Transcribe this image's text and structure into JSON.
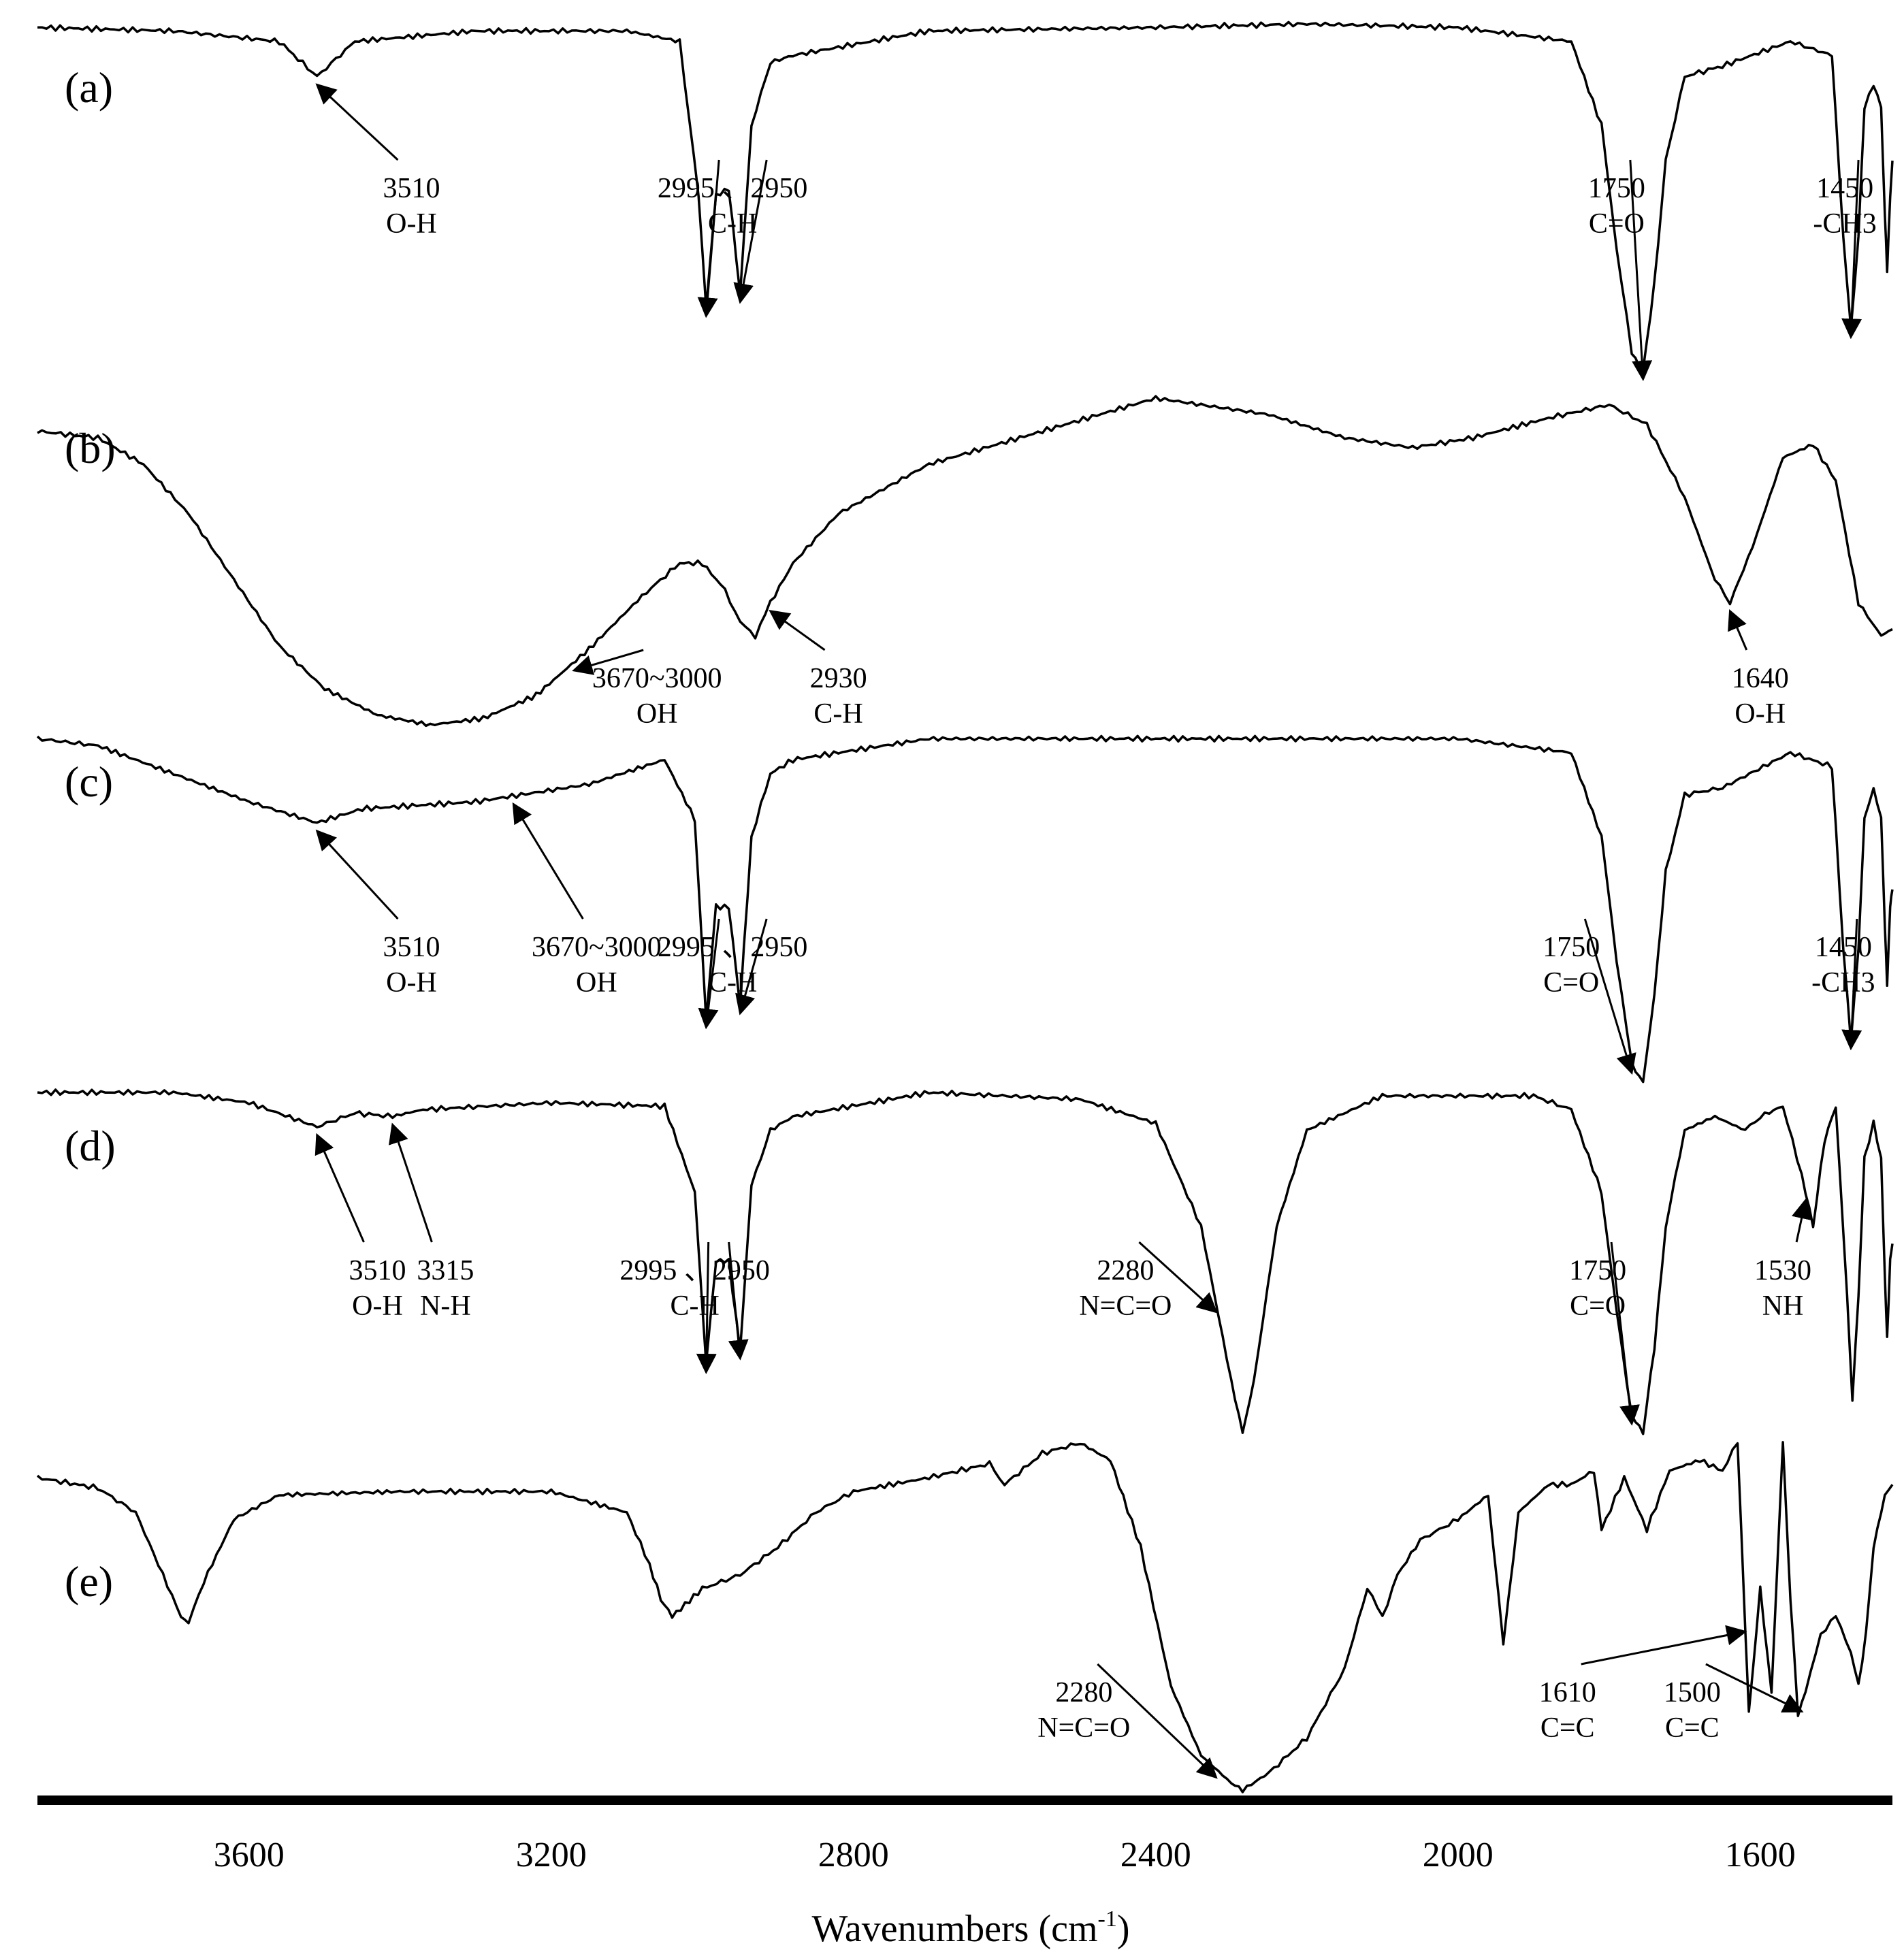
{
  "chart_data": {
    "type": "line",
    "xlabel": "Wavenumbers (cm-1)",
    "xlabel_base": "Wavenumbers (cm",
    "xlabel_sup": "-1",
    "xlabel_close": ")",
    "x_direction": "decreasing",
    "xlim": [
      3880,
      1425
    ],
    "xticks": [
      3600,
      3200,
      2800,
      2400,
      2000,
      1600
    ],
    "series": [
      {
        "name": "(a)",
        "points": [
          [
            3880,
            0.02
          ],
          [
            3700,
            0.03
          ],
          [
            3560,
            0.06
          ],
          [
            3510,
            0.16
          ],
          [
            3460,
            0.06
          ],
          [
            3300,
            0.03
          ],
          [
            3100,
            0.03
          ],
          [
            3030,
            0.06
          ],
          [
            3005,
            0.5
          ],
          [
            2995,
            0.82
          ],
          [
            2982,
            0.5
          ],
          [
            2965,
            0.48
          ],
          [
            2950,
            0.78
          ],
          [
            2935,
            0.3
          ],
          [
            2910,
            0.12
          ],
          [
            2880,
            0.1
          ],
          [
            2700,
            0.03
          ],
          [
            2400,
            0.02
          ],
          [
            2200,
            0.01
          ],
          [
            2000,
            0.02
          ],
          [
            1850,
            0.06
          ],
          [
            1810,
            0.3
          ],
          [
            1790,
            0.65
          ],
          [
            1770,
            0.95
          ],
          [
            1755,
            1.0
          ],
          [
            1740,
            0.75
          ],
          [
            1725,
            0.4
          ],
          [
            1700,
            0.16
          ],
          [
            1650,
            0.13
          ],
          [
            1560,
            0.06
          ],
          [
            1505,
            0.1
          ],
          [
            1490,
            0.62
          ],
          [
            1480,
            0.88
          ],
          [
            1470,
            0.62
          ],
          [
            1462,
            0.25
          ],
          [
            1450,
            0.18
          ],
          [
            1440,
            0.25
          ],
          [
            1435,
            0.55
          ],
          [
            1432,
            0.72
          ],
          [
            1428,
            0.5
          ],
          [
            1425,
            0.4
          ]
        ]
      },
      {
        "name": "(b)",
        "points": [
          [
            3880,
            0.1
          ],
          [
            3800,
            0.12
          ],
          [
            3740,
            0.2
          ],
          [
            3680,
            0.35
          ],
          [
            3620,
            0.55
          ],
          [
            3560,
            0.75
          ],
          [
            3500,
            0.88
          ],
          [
            3430,
            0.96
          ],
          [
            3360,
            0.99
          ],
          [
            3290,
            0.97
          ],
          [
            3220,
            0.9
          ],
          [
            3150,
            0.76
          ],
          [
            3080,
            0.6
          ],
          [
            3030,
            0.5
          ],
          [
            3000,
            0.5
          ],
          [
            2970,
            0.58
          ],
          [
            2950,
            0.68
          ],
          [
            2930,
            0.72
          ],
          [
            2910,
            0.62
          ],
          [
            2880,
            0.5
          ],
          [
            2820,
            0.35
          ],
          [
            2700,
            0.2
          ],
          [
            2550,
            0.1
          ],
          [
            2400,
            0.0
          ],
          [
            2250,
            0.05
          ],
          [
            2150,
            0.12
          ],
          [
            2060,
            0.15
          ],
          [
            1980,
            0.12
          ],
          [
            1880,
            0.06
          ],
          [
            1800,
            0.02
          ],
          [
            1750,
            0.08
          ],
          [
            1700,
            0.3
          ],
          [
            1660,
            0.55
          ],
          [
            1640,
            0.62
          ],
          [
            1610,
            0.45
          ],
          [
            1570,
            0.18
          ],
          [
            1530,
            0.14
          ],
          [
            1500,
            0.25
          ],
          [
            1470,
            0.62
          ],
          [
            1440,
            0.72
          ],
          [
            1425,
            0.7
          ]
        ]
      },
      {
        "name": "(c)",
        "points": [
          [
            3880,
            0.02
          ],
          [
            3800,
            0.04
          ],
          [
            3700,
            0.12
          ],
          [
            3600,
            0.2
          ],
          [
            3510,
            0.26
          ],
          [
            3450,
            0.22
          ],
          [
            3300,
            0.2
          ],
          [
            3150,
            0.15
          ],
          [
            3050,
            0.08
          ],
          [
            3010,
            0.25
          ],
          [
            2995,
            0.82
          ],
          [
            2982,
            0.5
          ],
          [
            2965,
            0.5
          ],
          [
            2950,
            0.78
          ],
          [
            2935,
            0.3
          ],
          [
            2910,
            0.12
          ],
          [
            2880,
            0.08
          ],
          [
            2700,
            0.02
          ],
          [
            2400,
            0.02
          ],
          [
            2000,
            0.02
          ],
          [
            1850,
            0.06
          ],
          [
            1810,
            0.3
          ],
          [
            1790,
            0.65
          ],
          [
            1770,
            0.95
          ],
          [
            1755,
            1.0
          ],
          [
            1740,
            0.75
          ],
          [
            1725,
            0.4
          ],
          [
            1700,
            0.18
          ],
          [
            1650,
            0.16
          ],
          [
            1560,
            0.06
          ],
          [
            1505,
            0.1
          ],
          [
            1490,
            0.62
          ],
          [
            1480,
            0.88
          ],
          [
            1470,
            0.62
          ],
          [
            1462,
            0.25
          ],
          [
            1450,
            0.16
          ],
          [
            1440,
            0.25
          ],
          [
            1435,
            0.55
          ],
          [
            1432,
            0.72
          ],
          [
            1428,
            0.5
          ],
          [
            1425,
            0.45
          ]
        ]
      },
      {
        "name": "(d)",
        "points": [
          [
            3880,
            0.01
          ],
          [
            3700,
            0.01
          ],
          [
            3600,
            0.04
          ],
          [
            3510,
            0.11
          ],
          [
            3460,
            0.07
          ],
          [
            3410,
            0.08
          ],
          [
            3370,
            0.06
          ],
          [
            3200,
            0.04
          ],
          [
            3050,
            0.05
          ],
          [
            3010,
            0.3
          ],
          [
            2995,
            0.8
          ],
          [
            2982,
            0.5
          ],
          [
            2965,
            0.5
          ],
          [
            2950,
            0.76
          ],
          [
            2935,
            0.28
          ],
          [
            2910,
            0.12
          ],
          [
            2880,
            0.08
          ],
          [
            2700,
            0.01
          ],
          [
            2500,
            0.03
          ],
          [
            2400,
            0.1
          ],
          [
            2340,
            0.4
          ],
          [
            2300,
            0.85
          ],
          [
            2285,
            1.0
          ],
          [
            2270,
            0.85
          ],
          [
            2240,
            0.4
          ],
          [
            2200,
            0.12
          ],
          [
            2100,
            0.02
          ],
          [
            1900,
            0.02
          ],
          [
            1850,
            0.06
          ],
          [
            1810,
            0.3
          ],
          [
            1790,
            0.65
          ],
          [
            1770,
            0.95
          ],
          [
            1755,
            1.0
          ],
          [
            1740,
            0.75
          ],
          [
            1725,
            0.4
          ],
          [
            1700,
            0.12
          ],
          [
            1660,
            0.08
          ],
          [
            1620,
            0.12
          ],
          [
            1600,
            0.08
          ],
          [
            1570,
            0.05
          ],
          [
            1545,
            0.25
          ],
          [
            1530,
            0.4
          ],
          [
            1515,
            0.15
          ],
          [
            1500,
            0.05
          ],
          [
            1485,
            0.6
          ],
          [
            1478,
            0.9
          ],
          [
            1470,
            0.6
          ],
          [
            1462,
            0.2
          ],
          [
            1450,
            0.1
          ],
          [
            1440,
            0.2
          ],
          [
            1435,
            0.55
          ],
          [
            1432,
            0.72
          ],
          [
            1428,
            0.5
          ],
          [
            1425,
            0.45
          ]
        ]
      },
      {
        "name": "(e)",
        "points": [
          [
            3880,
            0.1
          ],
          [
            3800,
            0.13
          ],
          [
            3750,
            0.2
          ],
          [
            3720,
            0.35
          ],
          [
            3690,
            0.5
          ],
          [
            3680,
            0.52
          ],
          [
            3660,
            0.4
          ],
          [
            3620,
            0.22
          ],
          [
            3560,
            0.15
          ],
          [
            3400,
            0.14
          ],
          [
            3200,
            0.14
          ],
          [
            3100,
            0.2
          ],
          [
            3070,
            0.35
          ],
          [
            3055,
            0.45
          ],
          [
            3040,
            0.5
          ],
          [
            3000,
            0.42
          ],
          [
            2950,
            0.38
          ],
          [
            2900,
            0.3
          ],
          [
            2850,
            0.2
          ],
          [
            2800,
            0.14
          ],
          [
            2700,
            0.1
          ],
          [
            2620,
            0.06
          ],
          [
            2600,
            0.12
          ],
          [
            2550,
            0.03
          ],
          [
            2500,
            0.0
          ],
          [
            2460,
            0.05
          ],
          [
            2420,
            0.3
          ],
          [
            2380,
            0.7
          ],
          [
            2340,
            0.9
          ],
          [
            2300,
            0.98
          ],
          [
            2285,
            1.0
          ],
          [
            2250,
            0.95
          ],
          [
            2200,
            0.85
          ],
          [
            2150,
            0.65
          ],
          [
            2120,
            0.42
          ],
          [
            2100,
            0.5
          ],
          [
            2080,
            0.38
          ],
          [
            2050,
            0.28
          ],
          [
            2000,
            0.22
          ],
          [
            1960,
            0.15
          ],
          [
            1940,
            0.58
          ],
          [
            1920,
            0.2
          ],
          [
            1880,
            0.12
          ],
          [
            1850,
            0.12
          ],
          [
            1820,
            0.08
          ],
          [
            1810,
            0.25
          ],
          [
            1780,
            0.1
          ],
          [
            1750,
            0.25
          ],
          [
            1720,
            0.08
          ],
          [
            1680,
            0.05
          ],
          [
            1650,
            0.08
          ],
          [
            1630,
            0.0
          ],
          [
            1615,
            0.78
          ],
          [
            1600,
            0.42
          ],
          [
            1585,
            0.72
          ],
          [
            1570,
            0.0
          ],
          [
            1560,
            0.45
          ],
          [
            1550,
            0.78
          ],
          [
            1540,
            0.72
          ],
          [
            1520,
            0.55
          ],
          [
            1500,
            0.5
          ],
          [
            1480,
            0.6
          ],
          [
            1470,
            0.7
          ],
          [
            1460,
            0.55
          ],
          [
            1450,
            0.3
          ],
          [
            1435,
            0.15
          ],
          [
            1425,
            0.12
          ]
        ]
      }
    ]
  },
  "panels": [
    {
      "label": "(a)",
      "annotations": [
        {
          "lines": [
            "3510",
            "O-H"
          ],
          "text_wn": 3385,
          "arrows": [
            3510
          ]
        },
        {
          "lines": [
            "2995 、2950",
            "C-H"
          ],
          "text_wn": 2960,
          "arrows": [
            2995,
            2950
          ]
        },
        {
          "lines": [
            "1750",
            "C=O"
          ],
          "text_wn": 1790,
          "arrows": [
            1755
          ]
        },
        {
          "lines": [
            "1450",
            "-CH3"
          ],
          "text_wn": 1488,
          "arrows": [
            1480
          ]
        }
      ]
    },
    {
      "label": "(b)",
      "annotations": [
        {
          "lines": [
            "3670~3000",
            "OH"
          ],
          "text_wn": 3060,
          "arrows": [
            3170
          ]
        },
        {
          "lines": [
            "2930",
            "C-H"
          ],
          "text_wn": 2820,
          "arrows": [
            2910
          ]
        },
        {
          "lines": [
            "1640",
            "O-H"
          ],
          "text_wn": 1600,
          "arrows": [
            1640
          ]
        }
      ]
    },
    {
      "label": "(c)",
      "annotations": [
        {
          "lines": [
            "3510",
            "O-H"
          ],
          "text_wn": 3385,
          "arrows": [
            3510
          ]
        },
        {
          "lines": [
            "3670~3000",
            "OH"
          ],
          "text_wn": 3140,
          "arrows": [
            3250
          ]
        },
        {
          "lines": [
            "2995 、2950",
            "C-H"
          ],
          "text_wn": 2960,
          "arrows": [
            2995,
            2950
          ]
        },
        {
          "lines": [
            "1750",
            "C=O"
          ],
          "text_wn": 1850,
          "arrows": [
            1770
          ]
        },
        {
          "lines": [
            "1450",
            "-CH3"
          ],
          "text_wn": 1490,
          "arrows": [
            1480
          ]
        }
      ]
    },
    {
      "label": "(d)",
      "annotations": [
        {
          "lines": [
            "3510",
            "O-H"
          ],
          "text_wn": 3430,
          "arrows": [
            3510
          ]
        },
        {
          "lines": [
            "3315",
            "N-H"
          ],
          "text_wn": 3340,
          "arrows": [
            3410
          ]
        },
        {
          "lines": [
            "2995 、2950",
            "C-H"
          ],
          "text_wn": 3010,
          "arrows": [
            2995,
            2950
          ]
        },
        {
          "lines": [
            "2280",
            "N=C=O"
          ],
          "text_wn": 2440,
          "arrows": [
            2320
          ]
        },
        {
          "lines": [
            "1750",
            "C=O"
          ],
          "text_wn": 1815,
          "arrows": [
            1770
          ]
        },
        {
          "lines": [
            "1530",
            "NH"
          ],
          "text_wn": 1570,
          "arrows": [
            1540
          ]
        }
      ]
    },
    {
      "label": "(e)",
      "annotations": [
        {
          "lines": [
            "2280",
            "N=C=O"
          ],
          "text_wn": 2495,
          "arrows": [
            2320
          ]
        },
        {
          "lines": [
            "1610",
            "C=C"
          ],
          "text_wn": 1855,
          "arrows": [
            1620
          ]
        },
        {
          "lines": [
            "1500",
            "C=C"
          ],
          "text_wn": 1690,
          "arrows": [
            1545
          ]
        }
      ]
    }
  ]
}
